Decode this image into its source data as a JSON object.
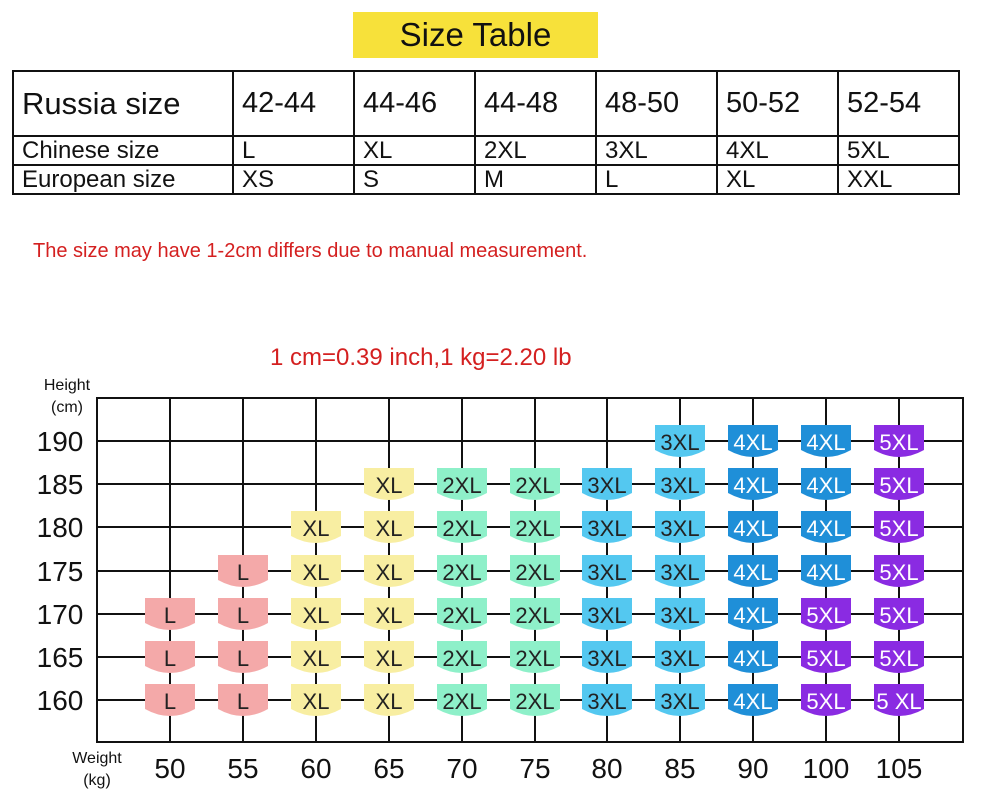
{
  "title": "Size Table",
  "table": {
    "rows": [
      {
        "label": "Russia size",
        "cells": [
          "42-44",
          "44-46",
          "44-48",
          "48-50",
          "50-52",
          "52-54"
        ]
      },
      {
        "label": "Chinese size",
        "cells": [
          "L",
          "XL",
          "2XL",
          "3XL",
          "4XL",
          "5XL"
        ]
      },
      {
        "label": "European size",
        "cells": [
          "XS",
          "S",
          "M",
          "L",
          "XL",
          "XXL"
        ]
      }
    ]
  },
  "note": "The size may have 1-2cm differs due to manual measurement.",
  "conversion": "1 cm=0.39 inch,1 kg=2.20 lb",
  "colors": {
    "title_bg": "#f7e13a",
    "note_text": "#d42020",
    "L": "#f4a9a9",
    "XL": "#f8eea2",
    "2XL": "#8ef0c9",
    "3XL": "#54c8f0",
    "4XL": "#1f8fd8",
    "5XL": "#8a2be2"
  },
  "chart_data": {
    "type": "table",
    "ylabel": [
      "Height",
      "(cm)"
    ],
    "xlabel": [
      "Weight",
      "(kg)"
    ],
    "x": [
      50,
      55,
      60,
      65,
      70,
      75,
      80,
      85,
      90,
      100,
      105
    ],
    "y": [
      190,
      185,
      180,
      175,
      170,
      165,
      160
    ],
    "cells": [
      {
        "height": 190,
        "weight": 85,
        "size": "3XL"
      },
      {
        "height": 190,
        "weight": 90,
        "size": "4XL"
      },
      {
        "height": 190,
        "weight": 100,
        "size": "4XL"
      },
      {
        "height": 190,
        "weight": 105,
        "size": "5XL"
      },
      {
        "height": 185,
        "weight": 65,
        "size": "XL"
      },
      {
        "height": 185,
        "weight": 70,
        "size": "2XL"
      },
      {
        "height": 185,
        "weight": 75,
        "size": "2XL"
      },
      {
        "height": 185,
        "weight": 80,
        "size": "3XL"
      },
      {
        "height": 185,
        "weight": 85,
        "size": "3XL"
      },
      {
        "height": 185,
        "weight": 90,
        "size": "4XL"
      },
      {
        "height": 185,
        "weight": 100,
        "size": "4XL"
      },
      {
        "height": 185,
        "weight": 105,
        "size": "5XL"
      },
      {
        "height": 180,
        "weight": 60,
        "size": "XL"
      },
      {
        "height": 180,
        "weight": 65,
        "size": "XL"
      },
      {
        "height": 180,
        "weight": 70,
        "size": "2XL"
      },
      {
        "height": 180,
        "weight": 75,
        "size": "2XL"
      },
      {
        "height": 180,
        "weight": 80,
        "size": "3XL"
      },
      {
        "height": 180,
        "weight": 85,
        "size": "3XL"
      },
      {
        "height": 180,
        "weight": 90,
        "size": "4XL"
      },
      {
        "height": 180,
        "weight": 100,
        "size": "4XL"
      },
      {
        "height": 180,
        "weight": 105,
        "size": "5XL"
      },
      {
        "height": 175,
        "weight": 55,
        "size": "L"
      },
      {
        "height": 175,
        "weight": 60,
        "size": "XL"
      },
      {
        "height": 175,
        "weight": 65,
        "size": "XL"
      },
      {
        "height": 175,
        "weight": 70,
        "size": "2XL"
      },
      {
        "height": 175,
        "weight": 75,
        "size": "2XL"
      },
      {
        "height": 175,
        "weight": 80,
        "size": "3XL"
      },
      {
        "height": 175,
        "weight": 85,
        "size": "3XL"
      },
      {
        "height": 175,
        "weight": 90,
        "size": "4XL"
      },
      {
        "height": 175,
        "weight": 100,
        "size": "4XL"
      },
      {
        "height": 175,
        "weight": 105,
        "size": "5XL"
      },
      {
        "height": 170,
        "weight": 50,
        "size": "L"
      },
      {
        "height": 170,
        "weight": 55,
        "size": "L"
      },
      {
        "height": 170,
        "weight": 60,
        "size": "XL"
      },
      {
        "height": 170,
        "weight": 65,
        "size": "XL"
      },
      {
        "height": 170,
        "weight": 70,
        "size": "2XL"
      },
      {
        "height": 170,
        "weight": 75,
        "size": "2XL"
      },
      {
        "height": 170,
        "weight": 80,
        "size": "3XL"
      },
      {
        "height": 170,
        "weight": 85,
        "size": "3XL"
      },
      {
        "height": 170,
        "weight": 90,
        "size": "4XL"
      },
      {
        "height": 170,
        "weight": 100,
        "size": "5XL"
      },
      {
        "height": 170,
        "weight": 105,
        "size": "5XL"
      },
      {
        "height": 165,
        "weight": 50,
        "size": "L"
      },
      {
        "height": 165,
        "weight": 55,
        "size": "L"
      },
      {
        "height": 165,
        "weight": 60,
        "size": "XL"
      },
      {
        "height": 165,
        "weight": 65,
        "size": "XL"
      },
      {
        "height": 165,
        "weight": 70,
        "size": "2XL"
      },
      {
        "height": 165,
        "weight": 75,
        "size": "2XL"
      },
      {
        "height": 165,
        "weight": 80,
        "size": "3XL"
      },
      {
        "height": 165,
        "weight": 85,
        "size": "3XL"
      },
      {
        "height": 165,
        "weight": 90,
        "size": "4XL"
      },
      {
        "height": 165,
        "weight": 100,
        "size": "5XL"
      },
      {
        "height": 165,
        "weight": 105,
        "size": "5XL"
      },
      {
        "height": 160,
        "weight": 50,
        "size": "L"
      },
      {
        "height": 160,
        "weight": 55,
        "size": "L"
      },
      {
        "height": 160,
        "weight": 60,
        "size": "XL"
      },
      {
        "height": 160,
        "weight": 65,
        "size": "XL"
      },
      {
        "height": 160,
        "weight": 70,
        "size": "2XL"
      },
      {
        "height": 160,
        "weight": 75,
        "size": "2XL"
      },
      {
        "height": 160,
        "weight": 80,
        "size": "3XL"
      },
      {
        "height": 160,
        "weight": 85,
        "size": "3XL"
      },
      {
        "height": 160,
        "weight": 90,
        "size": "4XL"
      },
      {
        "height": 160,
        "weight": 100,
        "size": "5XL"
      },
      {
        "height": 160,
        "weight": 105,
        "size": "5 XL"
      }
    ]
  }
}
